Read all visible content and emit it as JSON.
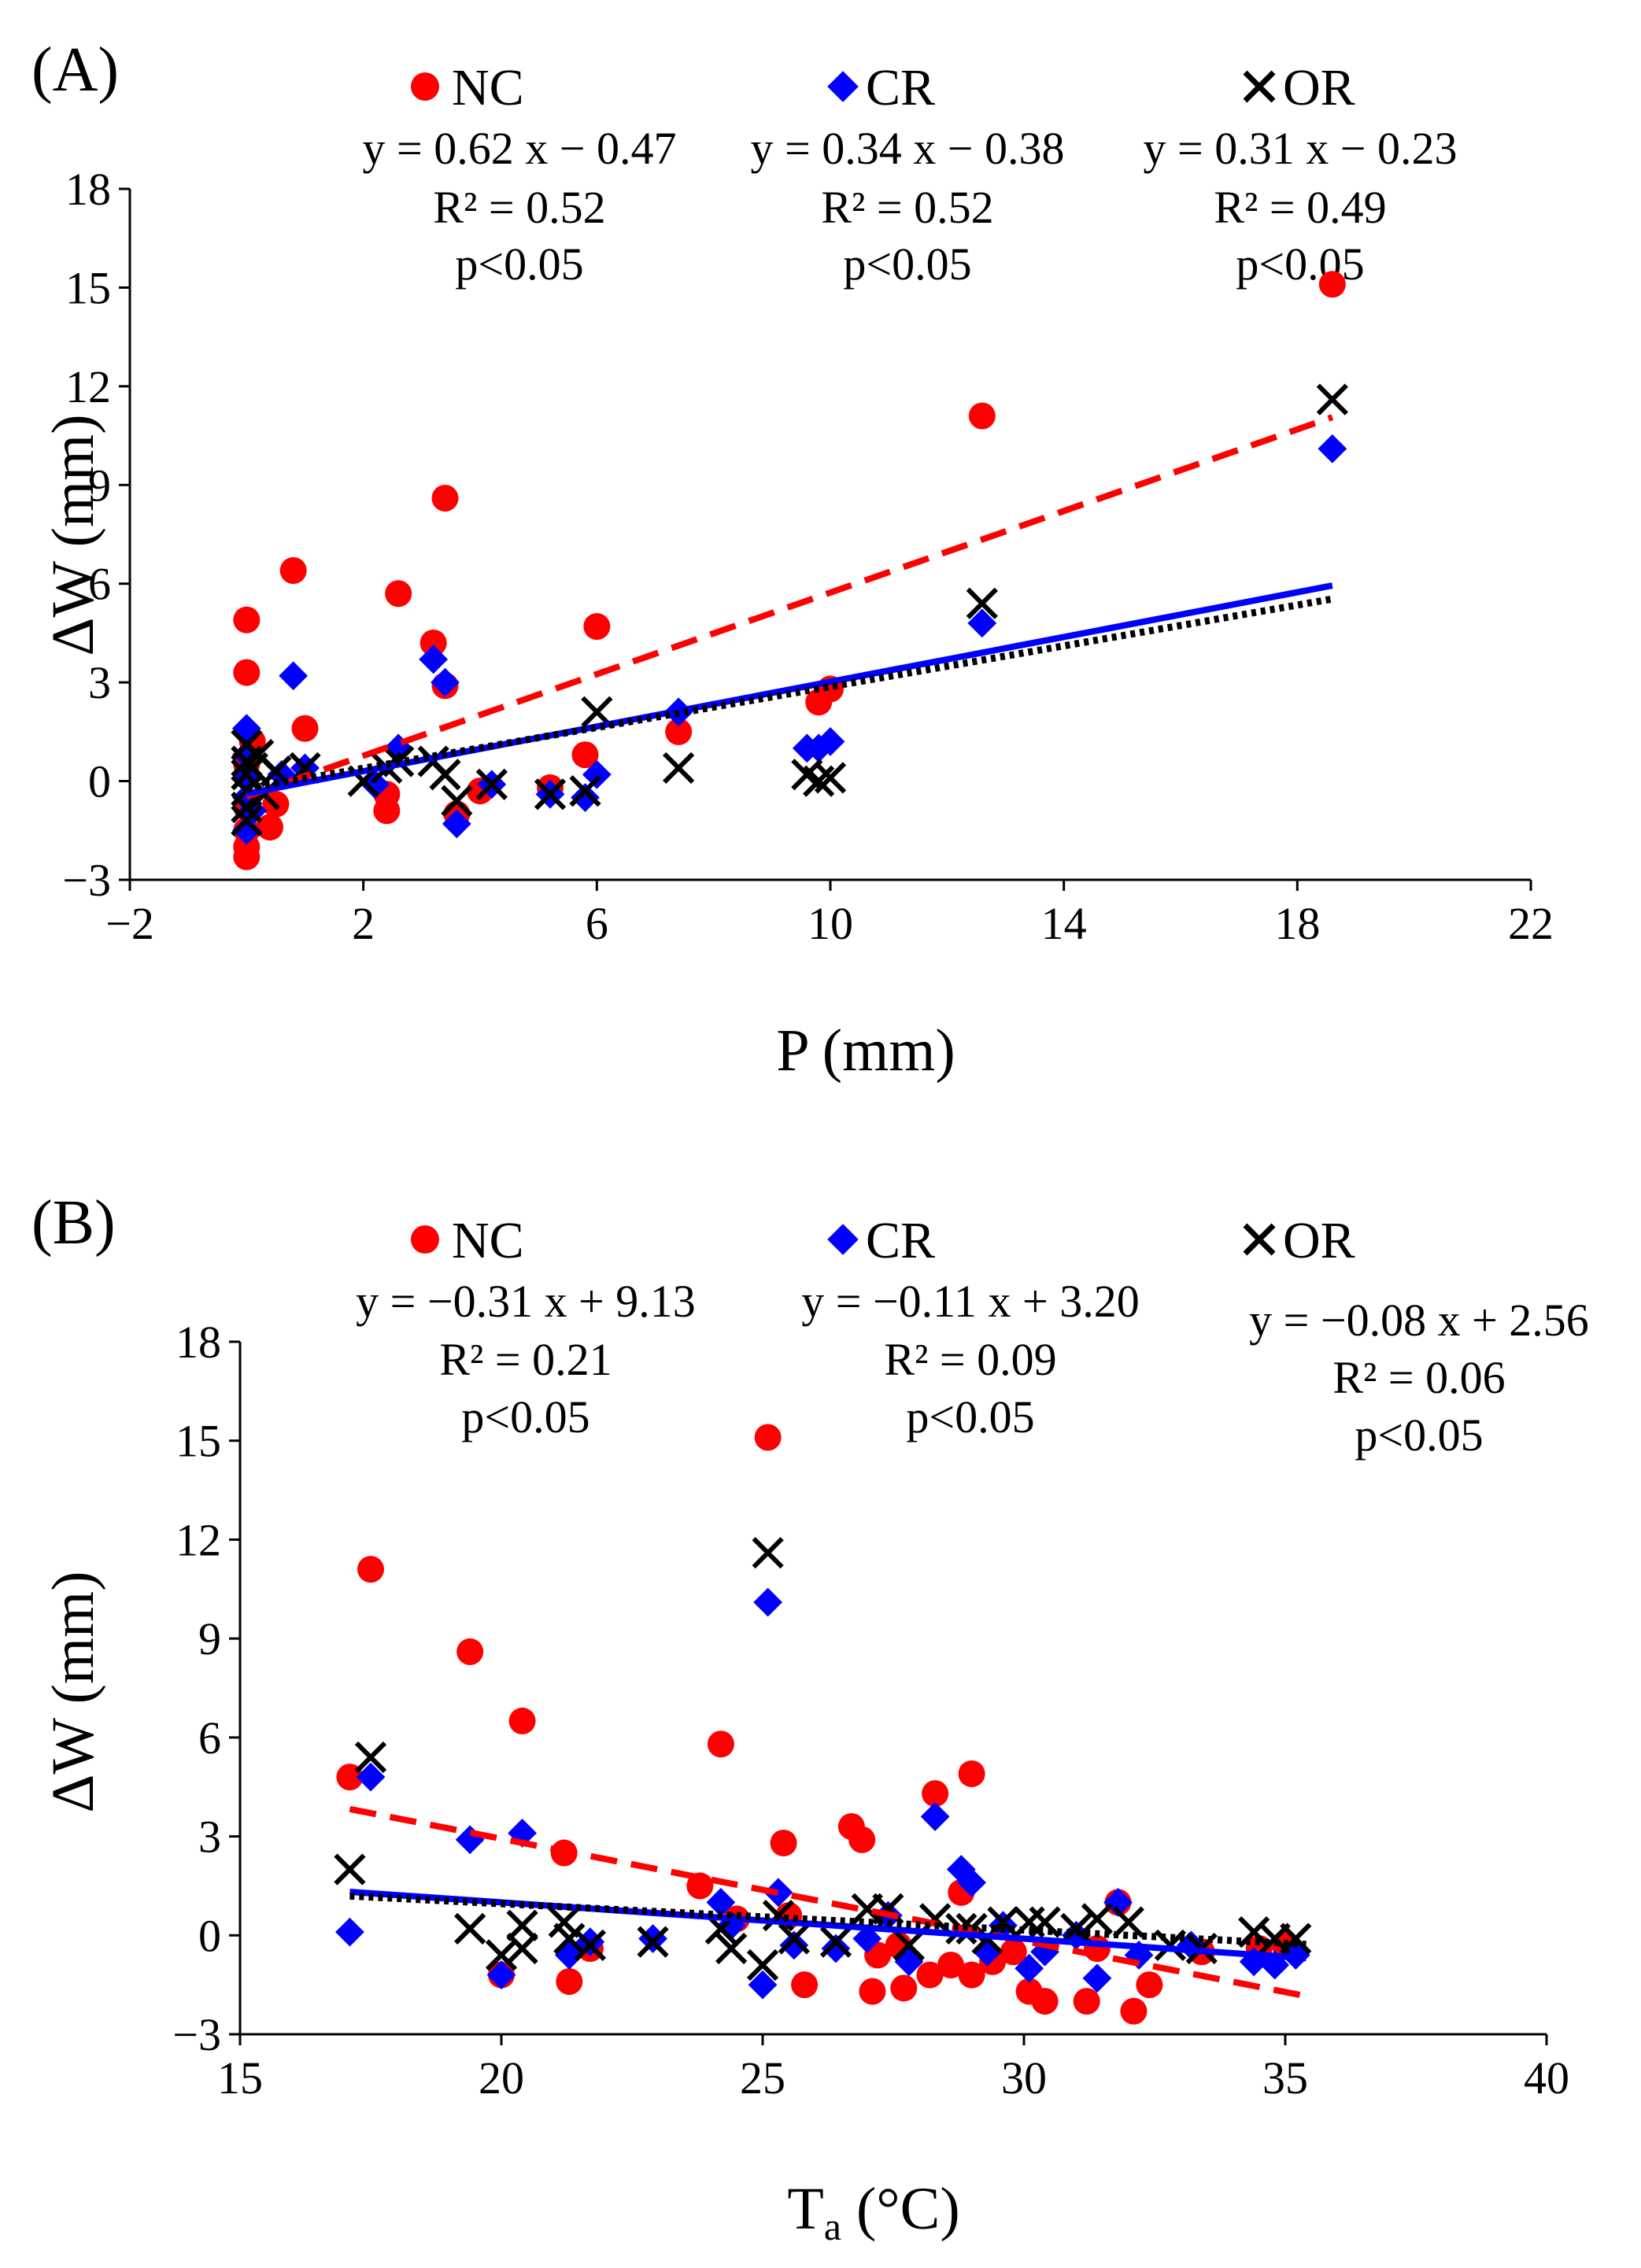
{
  "panels": [
    {
      "label": "(A)",
      "xlabel": "P (mm)",
      "ylabel": "ΔW (mm)",
      "legend": {
        "NC": "NC",
        "CR": "CR",
        "OR": "OR"
      },
      "equations": {
        "NC": {
          "eq": "y = 0.62 x − 0.47",
          "r2": "R² = 0.52",
          "p": "p<0.05"
        },
        "CR": {
          "eq": "y = 0.34 x − 0.38",
          "r2": "R² = 0.52",
          "p": "p<0.05"
        },
        "OR": {
          "eq": "y = 0.31 x − 0.23",
          "r2": "R² = 0.49",
          "p": "p<0.05"
        }
      }
    },
    {
      "label": "(B)",
      "xlabel_main": "T",
      "xlabel_sub": "a",
      "xlabel_rest": " (°C)",
      "ylabel": "ΔW (mm)",
      "legend": {
        "NC": "NC",
        "CR": "CR",
        "OR": "OR"
      },
      "equations": {
        "NC": {
          "eq": "y = −0.31 x + 9.13",
          "r2": "R² = 0.21",
          "p": "p<0.05"
        },
        "CR": {
          "eq": "y = −0.11 x + 3.20",
          "r2": "R² = 0.09",
          "p": "p<0.05"
        },
        "OR": {
          "eq": "y = −0.08 x + 2.56",
          "r2": "R² = 0.06",
          "p": "p<0.05"
        }
      }
    }
  ],
  "chart_data": [
    {
      "type": "scatter",
      "title": "(A)",
      "xlabel": "P (mm)",
      "ylabel": "ΔW (mm)",
      "xlim": [
        -2,
        22
      ],
      "ylim": [
        -3,
        18
      ],
      "xticks": [
        -2,
        2,
        6,
        10,
        14,
        18,
        22
      ],
      "yticks": [
        -3,
        0,
        3,
        6,
        9,
        12,
        15,
        18
      ],
      "tick_labels_x": [
        "−2",
        "2",
        "6",
        "10",
        "14",
        "18",
        "22"
      ],
      "tick_labels_y": [
        "−3",
        "0",
        "3",
        "6",
        "9",
        "12",
        "15",
        "18"
      ],
      "grid": false,
      "legend_position": "top",
      "series": [
        {
          "name": "NC",
          "marker": "circle",
          "color": "#ff0000",
          "trend": {
            "slope": 0.62,
            "intercept": -0.47,
            "x_range": [
              0,
              18.6
            ],
            "style": "dashed"
          },
          "points": [
            [
              0,
              4.9
            ],
            [
              0,
              3.3
            ],
            [
              0,
              -2.0
            ],
            [
              0,
              -2.3
            ],
            [
              0,
              -1.5
            ],
            [
              0,
              -0.8
            ],
            [
              0,
              0.5
            ],
            [
              0.1,
              1.2
            ],
            [
              0.4,
              -1.4
            ],
            [
              0.5,
              -0.7
            ],
            [
              0.8,
              6.4
            ],
            [
              1.0,
              1.6
            ],
            [
              2.4,
              -0.4
            ],
            [
              2.4,
              -0.9
            ],
            [
              2.6,
              5.7
            ],
            [
              3.2,
              4.2
            ],
            [
              3.4,
              8.6
            ],
            [
              3.4,
              2.9
            ],
            [
              3.6,
              -1.0
            ],
            [
              4.0,
              -0.3
            ],
            [
              5.2,
              -0.2
            ],
            [
              5.8,
              0.8
            ],
            [
              6.0,
              4.7
            ],
            [
              7.4,
              1.5
            ],
            [
              9.8,
              2.4
            ],
            [
              10.0,
              2.8
            ],
            [
              12.6,
              11.1
            ],
            [
              18.6,
              15.1
            ]
          ]
        },
        {
          "name": "CR",
          "marker": "diamond",
          "color": "#0000ff",
          "trend": {
            "slope": 0.34,
            "intercept": -0.38,
            "x_range": [
              0,
              18.6
            ],
            "style": "solid"
          },
          "points": [
            [
              0,
              1.6
            ],
            [
              0,
              0.8
            ],
            [
              0,
              -0.5
            ],
            [
              0,
              -1.5
            ],
            [
              0,
              0.2
            ],
            [
              0.1,
              -0.9
            ],
            [
              0.6,
              0.2
            ],
            [
              0.8,
              3.2
            ],
            [
              1.0,
              0.4
            ],
            [
              2.2,
              -0.1
            ],
            [
              2.6,
              1.0
            ],
            [
              3.2,
              3.7
            ],
            [
              3.4,
              3.0
            ],
            [
              3.6,
              -1.3
            ],
            [
              4.2,
              -0.1
            ],
            [
              5.2,
              -0.4
            ],
            [
              5.8,
              -0.5
            ],
            [
              6.0,
              0.2
            ],
            [
              7.4,
              2.1
            ],
            [
              9.6,
              1.0
            ],
            [
              9.8,
              1.0
            ],
            [
              10.0,
              1.2
            ],
            [
              12.6,
              4.8
            ],
            [
              18.6,
              10.1
            ]
          ]
        },
        {
          "name": "OR",
          "marker": "x",
          "color": "#000000",
          "trend": {
            "slope": 0.31,
            "intercept": -0.23,
            "x_range": [
              0,
              18.6
            ],
            "style": "dotted"
          },
          "points": [
            [
              0,
              1.1
            ],
            [
              0,
              0.6
            ],
            [
              0,
              0.2
            ],
            [
              0,
              -0.3
            ],
            [
              0,
              -0.8
            ],
            [
              0,
              -1.2
            ],
            [
              0.1,
              0.4
            ],
            [
              0.2,
              0.8
            ],
            [
              0.3,
              -0.4
            ],
            [
              0.5,
              0.3
            ],
            [
              1.0,
              0.4
            ],
            [
              2.0,
              0.0
            ],
            [
              2.4,
              0.4
            ],
            [
              2.6,
              0.6
            ],
            [
              3.2,
              0.6
            ],
            [
              3.4,
              0.2
            ],
            [
              3.6,
              -0.6
            ],
            [
              4.2,
              -0.1
            ],
            [
              5.2,
              -0.4
            ],
            [
              5.8,
              -0.3
            ],
            [
              6.0,
              2.1
            ],
            [
              7.4,
              0.4
            ],
            [
              9.6,
              0.2
            ],
            [
              9.8,
              0.0
            ],
            [
              10.0,
              0.1
            ],
            [
              12.6,
              5.4
            ],
            [
              18.6,
              11.6
            ]
          ]
        }
      ]
    },
    {
      "type": "scatter",
      "title": "(B)",
      "xlabel": "Ta (°C)",
      "ylabel": "ΔW (mm)",
      "xlim": [
        15,
        40
      ],
      "ylim": [
        -3,
        18
      ],
      "xticks": [
        15,
        20,
        25,
        30,
        35,
        40
      ],
      "yticks": [
        -3,
        0,
        3,
        6,
        9,
        12,
        15,
        18
      ],
      "tick_labels_x": [
        "15",
        "20",
        "25",
        "30",
        "35",
        "40"
      ],
      "tick_labels_y": [
        "−3",
        "0",
        "3",
        "6",
        "9",
        "12",
        "15",
        "18"
      ],
      "grid": false,
      "legend_position": "top",
      "series": [
        {
          "name": "NC",
          "marker": "circle",
          "color": "#ff0000",
          "trend": {
            "slope": -0.31,
            "intercept": 9.13,
            "x_range": [
              17.1,
              35.4
            ],
            "style": "dashed"
          },
          "points": [
            [
              17.1,
              4.8
            ],
            [
              17.5,
              11.1
            ],
            [
              19.4,
              8.6
            ],
            [
              20.0,
              -1.2
            ],
            [
              20.4,
              6.5
            ],
            [
              21.2,
              2.5
            ],
            [
              21.3,
              -1.4
            ],
            [
              21.7,
              -0.4
            ],
            [
              23.8,
              1.5
            ],
            [
              24.2,
              5.8
            ],
            [
              24.5,
              0.5
            ],
            [
              25.1,
              15.1
            ],
            [
              25.4,
              2.8
            ],
            [
              25.5,
              0.6
            ],
            [
              25.8,
              -1.5
            ],
            [
              26.7,
              3.3
            ],
            [
              26.9,
              2.9
            ],
            [
              27.1,
              -1.7
            ],
            [
              27.2,
              -0.6
            ],
            [
              27.6,
              -0.3
            ],
            [
              27.7,
              -1.6
            ],
            [
              28.2,
              -1.2
            ],
            [
              28.3,
              4.3
            ],
            [
              28.6,
              -0.9
            ],
            [
              28.8,
              1.3
            ],
            [
              29.0,
              4.9
            ],
            [
              29.0,
              -1.2
            ],
            [
              29.4,
              -0.8
            ],
            [
              29.8,
              -0.5
            ],
            [
              30.1,
              -1.7
            ],
            [
              30.4,
              -2.0
            ],
            [
              31.2,
              -2.0
            ],
            [
              31.4,
              -0.4
            ],
            [
              31.8,
              1.0
            ],
            [
              32.1,
              -2.3
            ],
            [
              32.4,
              -1.5
            ],
            [
              33.4,
              -0.5
            ],
            [
              34.5,
              -0.4
            ],
            [
              35.0,
              -0.3
            ]
          ]
        },
        {
          "name": "CR",
          "marker": "diamond",
          "color": "#0000ff",
          "trend": {
            "slope": -0.11,
            "intercept": 3.2,
            "x_range": [
              17.1,
              35.4
            ],
            "style": "solid"
          },
          "points": [
            [
              17.1,
              0.1
            ],
            [
              17.5,
              4.8
            ],
            [
              19.4,
              2.9
            ],
            [
              20.0,
              -1.2
            ],
            [
              20.4,
              3.1
            ],
            [
              21.3,
              -0.6
            ],
            [
              21.7,
              -0.2
            ],
            [
              22.9,
              -0.1
            ],
            [
              24.2,
              1.0
            ],
            [
              24.4,
              0.3
            ],
            [
              25.0,
              -1.5
            ],
            [
              25.1,
              10.1
            ],
            [
              25.3,
              1.3
            ],
            [
              25.6,
              -0.3
            ],
            [
              26.4,
              -0.4
            ],
            [
              27.0,
              -0.1
            ],
            [
              27.4,
              0.6
            ],
            [
              27.8,
              -0.8
            ],
            [
              28.3,
              3.6
            ],
            [
              28.8,
              2.0
            ],
            [
              29.0,
              1.6
            ],
            [
              29.3,
              -0.5
            ],
            [
              29.6,
              0.3
            ],
            [
              30.1,
              -1.0
            ],
            [
              30.4,
              -0.5
            ],
            [
              31.0,
              0.0
            ],
            [
              31.4,
              -1.3
            ],
            [
              31.8,
              1.0
            ],
            [
              32.2,
              -0.6
            ],
            [
              33.2,
              -0.3
            ],
            [
              34.4,
              -0.8
            ],
            [
              34.8,
              -0.9
            ],
            [
              35.2,
              -0.6
            ]
          ]
        },
        {
          "name": "OR",
          "marker": "x",
          "color": "#000000",
          "trend": {
            "slope": -0.08,
            "intercept": 2.56,
            "x_range": [
              17.1,
              35.4
            ],
            "style": "dotted"
          },
          "points": [
            [
              17.1,
              2.0
            ],
            [
              17.5,
              5.4
            ],
            [
              19.4,
              0.2
            ],
            [
              20.0,
              -0.6
            ],
            [
              20.4,
              0.3
            ],
            [
              20.4,
              -0.4
            ],
            [
              21.2,
              0.4
            ],
            [
              21.3,
              -0.1
            ],
            [
              21.7,
              -0.3
            ],
            [
              22.9,
              -0.2
            ],
            [
              24.2,
              0.2
            ],
            [
              24.4,
              -0.4
            ],
            [
              25.0,
              -0.9
            ],
            [
              25.1,
              11.6
            ],
            [
              25.3,
              0.6
            ],
            [
              25.6,
              -0.1
            ],
            [
              26.4,
              -0.2
            ],
            [
              27.0,
              0.8
            ],
            [
              27.4,
              0.8
            ],
            [
              27.8,
              -0.3
            ],
            [
              28.3,
              0.5
            ],
            [
              28.8,
              0.2
            ],
            [
              29.0,
              0.2
            ],
            [
              29.3,
              -0.1
            ],
            [
              29.6,
              0.4
            ],
            [
              30.1,
              0.4
            ],
            [
              30.4,
              0.4
            ],
            [
              31.0,
              0.2
            ],
            [
              31.4,
              0.5
            ],
            [
              32.0,
              0.4
            ],
            [
              32.8,
              -0.3
            ],
            [
              33.4,
              -0.4
            ],
            [
              34.4,
              0.1
            ],
            [
              34.8,
              -0.1
            ],
            [
              35.2,
              -0.1
            ]
          ]
        }
      ]
    }
  ]
}
